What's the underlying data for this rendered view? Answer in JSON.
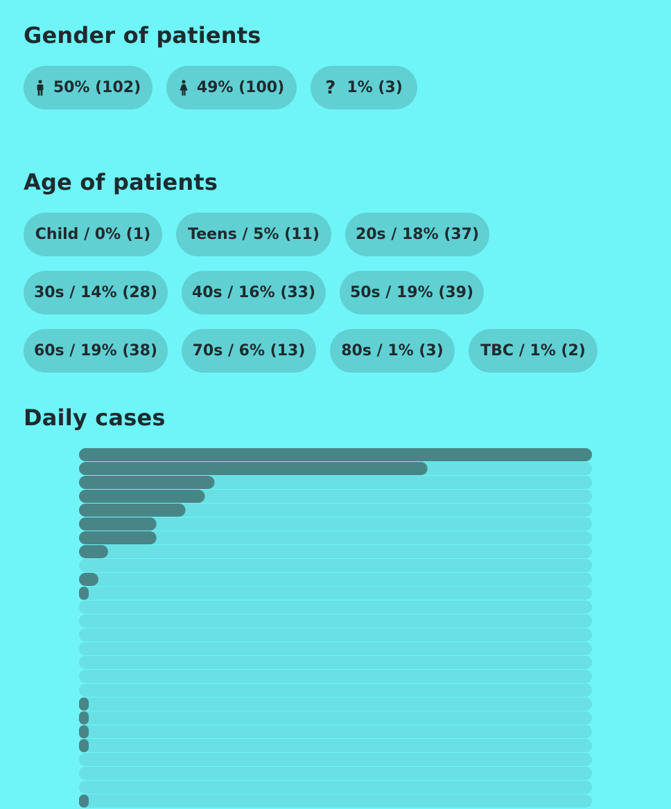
{
  "gender": {
    "title": "Gender of patients",
    "items": [
      {
        "label": "50% (102)",
        "icon": "male-icon"
      },
      {
        "label": "49% (100)",
        "icon": "female-icon"
      },
      {
        "label": "1% (3)",
        "icon": "question-icon",
        "glyph": "?"
      }
    ]
  },
  "age": {
    "title": "Age of patients",
    "items": [
      {
        "label": "Child / 0% (1)"
      },
      {
        "label": "Teens / 5% (11)"
      },
      {
        "label": "20s / 18% (37)"
      },
      {
        "label": "30s / 14% (28)"
      },
      {
        "label": "40s / 16% (33)"
      },
      {
        "label": "50s / 19% (39)"
      },
      {
        "label": "60s / 19% (38)"
      },
      {
        "label": "70s / 6% (13)"
      },
      {
        "label": "80s / 1% (3)"
      },
      {
        "label": "TBC / 1% (2)"
      }
    ]
  },
  "daily": {
    "title": "Daily cases"
  },
  "colors": {
    "background": "#6ff5f8",
    "pill": "#61d0d3",
    "bar_track": "#68e0e4",
    "bar_fill": "#488587",
    "text": "#1e2b2e"
  },
  "chart_data": {
    "type": "bar",
    "orientation": "horizontal",
    "values": [
      53,
      36,
      14,
      13,
      11,
      8,
      8,
      3,
      0,
      2,
      1,
      0,
      0,
      0,
      0,
      0,
      0,
      0,
      1,
      1,
      1,
      1,
      0,
      0,
      0,
      1
    ],
    "max": 53,
    "grid": false
  }
}
